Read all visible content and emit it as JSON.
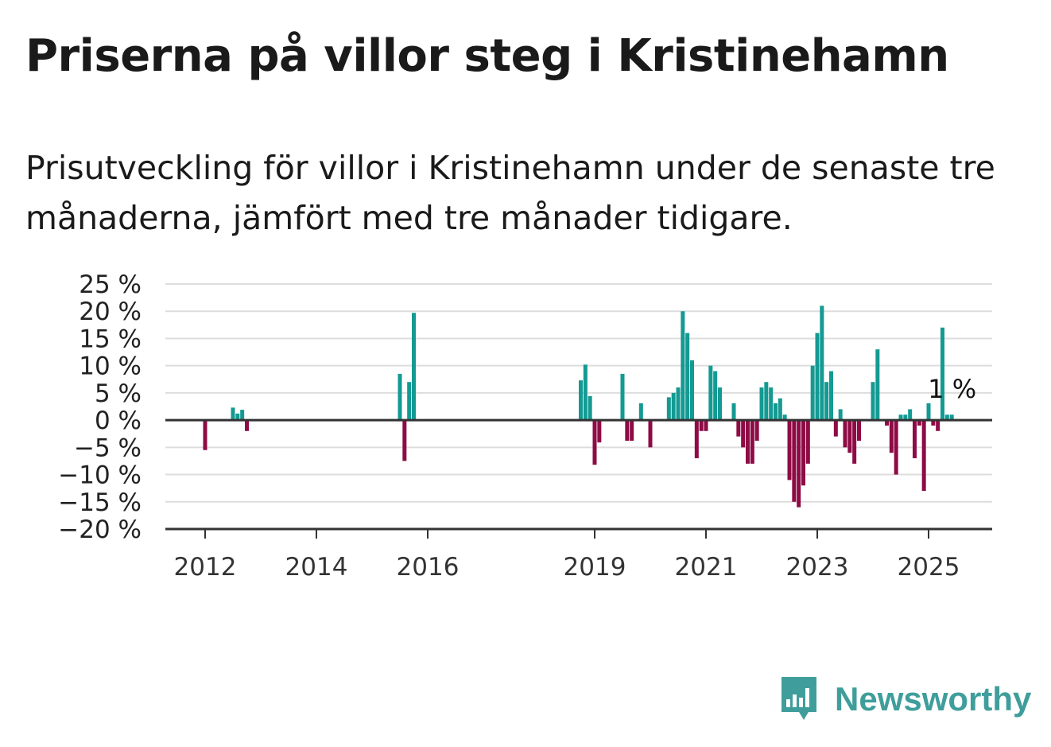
{
  "title": "Priserna på villor steg i Kristinehamn",
  "subtitle": "Prisutveckling för villor i Kristinehamn under de senaste tre månaderna, jämfört med tre månader tidigare.",
  "brand": {
    "name": "Newsworthy",
    "icon": "newsworthy-bar-chart-icon"
  },
  "colors": {
    "positive": "#139a93",
    "negative": "#8e0b45",
    "grid": "#dddddd",
    "axis": "#333333"
  },
  "chart_data": {
    "type": "bar",
    "ylim": [
      -20,
      25
    ],
    "yticks": [
      25,
      20,
      15,
      10,
      5,
      0,
      -5,
      -10,
      -15,
      -20
    ],
    "ytick_labels": [
      "25 %",
      "20 %",
      "15 %",
      "10 %",
      "5 %",
      "0 %",
      "−5 %",
      "−10 %",
      "−15 %",
      "−20 %"
    ],
    "xticks": [
      "2012",
      "2014",
      "2016",
      "2019",
      "2021",
      "2023",
      "2025"
    ],
    "annotation": {
      "text": "1 %",
      "x": "2025-06"
    },
    "grid": true,
    "x": [
      "2012-01",
      "2012-07",
      "2012-08",
      "2012-09",
      "2012-10",
      "2015-07",
      "2015-08",
      "2015-09",
      "2015-10",
      "2018-10",
      "2018-11",
      "2018-12",
      "2019-01",
      "2019-02",
      "2019-07",
      "2019-08",
      "2019-09",
      "2019-11",
      "2020-01",
      "2020-05",
      "2020-06",
      "2020-07",
      "2020-08",
      "2020-09",
      "2020-10",
      "2020-11",
      "2020-12",
      "2021-01",
      "2021-02",
      "2021-03",
      "2021-04",
      "2021-07",
      "2021-08",
      "2021-09",
      "2021-10",
      "2021-11",
      "2021-12",
      "2022-01",
      "2022-02",
      "2022-03",
      "2022-04",
      "2022-05",
      "2022-06",
      "2022-07",
      "2022-08",
      "2022-09",
      "2022-10",
      "2022-11",
      "2022-12",
      "2023-01",
      "2023-02",
      "2023-03",
      "2023-04",
      "2023-05",
      "2023-06",
      "2023-07",
      "2023-08",
      "2023-09",
      "2023-10",
      "2024-01",
      "2024-02",
      "2024-04",
      "2024-05",
      "2024-06",
      "2024-07",
      "2024-08",
      "2024-09",
      "2024-10",
      "2024-11",
      "2024-12",
      "2025-01",
      "2025-02",
      "2025-03",
      "2025-04",
      "2025-05",
      "2025-06"
    ],
    "values": [
      -5.5,
      2.3,
      1.2,
      1.9,
      -2,
      8.5,
      -7.5,
      7,
      19.7,
      7.3,
      10.2,
      4.4,
      -8.2,
      -4.1,
      8.5,
      -3.8,
      -3.8,
      3.1,
      -5,
      4.2,
      5,
      6,
      20,
      16,
      11,
      -7,
      -2,
      -2,
      10,
      9,
      6,
      3.1,
      -3,
      -5,
      -8,
      -8,
      -3.8,
      6,
      7,
      6,
      3.1,
      4,
      1,
      -11,
      -15,
      -16,
      -12,
      -8,
      10,
      16,
      21,
      7,
      9,
      -3,
      2,
      -5,
      -6,
      -8,
      -3.8,
      7,
      13,
      -1,
      -6,
      -10,
      1,
      1,
      2,
      -7,
      -1,
      -13,
      3.1,
      -1,
      -2,
      17,
      1,
      1
    ]
  }
}
